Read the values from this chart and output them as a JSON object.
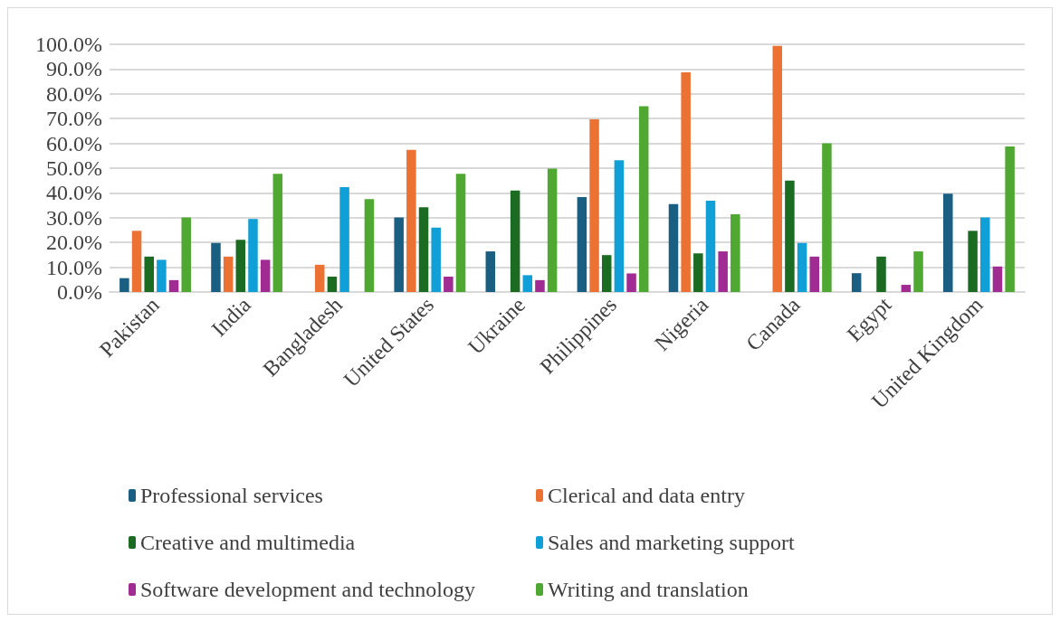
{
  "chart_data": {
    "type": "bar",
    "categories": [
      "Pakistan",
      "India",
      "Bangladesh",
      "United States",
      "Ukraine",
      "Philippines",
      "Nigeria",
      "Canada",
      "Egypt",
      "United Kingdom"
    ],
    "series": [
      {
        "name": "Professional services",
        "color": "#1a5e82",
        "values": [
          5.6,
          19.8,
          null,
          30.1,
          16.4,
          38.3,
          35.5,
          null,
          7.6,
          39.7
        ]
      },
      {
        "name": "Clerical and data entry",
        "color": "#eb7233",
        "values": [
          24.7,
          14.3,
          11.0,
          57.4,
          null,
          69.7,
          88.7,
          99.4,
          null,
          null
        ]
      },
      {
        "name": "Creative and multimedia",
        "color": "#1b6b23",
        "values": [
          14.3,
          21.1,
          6.2,
          34.2,
          41.0,
          14.9,
          15.6,
          45.0,
          14.3,
          24.7
        ]
      },
      {
        "name": "Sales and marketing support",
        "color": "#109fd6",
        "values": [
          13.0,
          29.5,
          42.3,
          26.0,
          6.8,
          53.2,
          36.9,
          19.8,
          null,
          30.1
        ]
      },
      {
        "name": "Software development and technology",
        "color": "#a02b93",
        "values": [
          4.8,
          13.0,
          null,
          6.2,
          4.8,
          7.5,
          16.4,
          14.3,
          2.9,
          10.3
        ]
      },
      {
        "name": "Writing and translation",
        "color": "#4fa831",
        "values": [
          30.1,
          47.7,
          37.5,
          47.7,
          49.8,
          75.0,
          31.4,
          60.0,
          16.4,
          58.8
        ]
      }
    ],
    "ylim": [
      0,
      100
    ],
    "yticks": [
      {
        "value": 0,
        "label": "0.0%"
      },
      {
        "value": 10,
        "label": "10.0%"
      },
      {
        "value": 20,
        "label": "20.0%"
      },
      {
        "value": 30,
        "label": "30.0%"
      },
      {
        "value": 40,
        "label": "40.0%"
      },
      {
        "value": 50,
        "label": "50.0%"
      },
      {
        "value": 60,
        "label": "60.0%"
      },
      {
        "value": 70,
        "label": "70.0%"
      },
      {
        "value": 80,
        "label": "80.0%"
      },
      {
        "value": 90,
        "label": "90.0%"
      },
      {
        "value": 100,
        "label": "100.0%"
      }
    ],
    "grid": "y",
    "legend": "bottom"
  }
}
